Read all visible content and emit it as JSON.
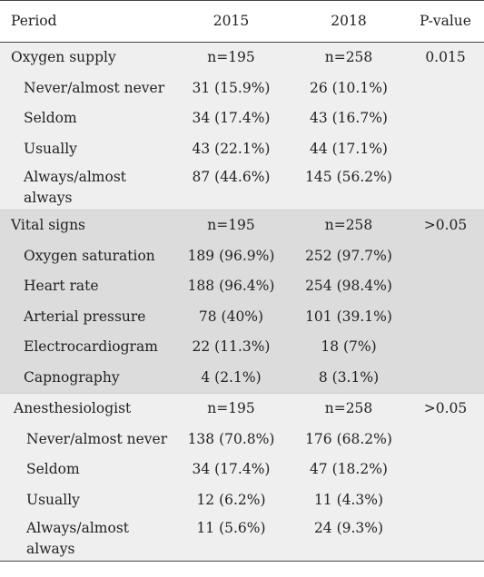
{
  "header": {
    "col1": "Period",
    "col2": "2015",
    "col3": "2018",
    "col4": "P-value"
  },
  "sections": [
    {
      "title": "Oxygen supply",
      "n2015": "n=195",
      "n2018": "n=258",
      "p": "0.015",
      "rows": [
        {
          "label": "Never/almost never",
          "v2015": "31 (15.9%)",
          "v2018": "26 (10.1%)"
        },
        {
          "label": "Seldom",
          "v2015": "34 (17.4%)",
          "v2018": "43 (16.7%)"
        },
        {
          "label": "Usually",
          "v2015": "43 (22.1%)",
          "v2018": "44 (17.1%)"
        },
        {
          "label_line1": "Always/almost",
          "label_line2": "always",
          "v2015": "87 (44.6%)",
          "v2018": "145 (56.2%)"
        }
      ]
    },
    {
      "title": "Vital signs",
      "n2015": "n=195",
      "n2018": "n=258",
      "p": ">0.05",
      "rows": [
        {
          "label": "Oxygen saturation",
          "v2015": "189 (96.9%)",
          "v2018": "252 (97.7%)"
        },
        {
          "label": "Heart rate",
          "v2015": "188 (96.4%)",
          "v2018": "254 (98.4%)"
        },
        {
          "label": "Arterial pressure",
          "v2015": "78 (40%)",
          "v2018": "101 (39.1%)"
        },
        {
          "label": "Electrocardiogram",
          "v2015": "22 (11.3%)",
          "v2018": "18 (7%)"
        },
        {
          "label": "Capnography",
          "v2015": "4 (2.1%)",
          "v2018": "8 (3.1%)"
        }
      ]
    },
    {
      "title": "Anesthesiologist",
      "n2015": "n=195",
      "n2018": "n=258",
      "p": ">0.05",
      "rows": [
        {
          "label": "Never/almost never",
          "v2015": "138 (70.8%)",
          "v2018": "176 (68.2%)"
        },
        {
          "label": "Seldom",
          "v2015": "34 (17.4%)",
          "v2018": "47 (18.2%)"
        },
        {
          "label": "Usually",
          "v2015": "12 (6.2%)",
          "v2018": "11 (4.3%)"
        },
        {
          "label_line1": "Always/almost",
          "label_line2": "always",
          "v2015": "11 (5.6%)",
          "v2018": "24 (9.3%)"
        }
      ]
    }
  ]
}
